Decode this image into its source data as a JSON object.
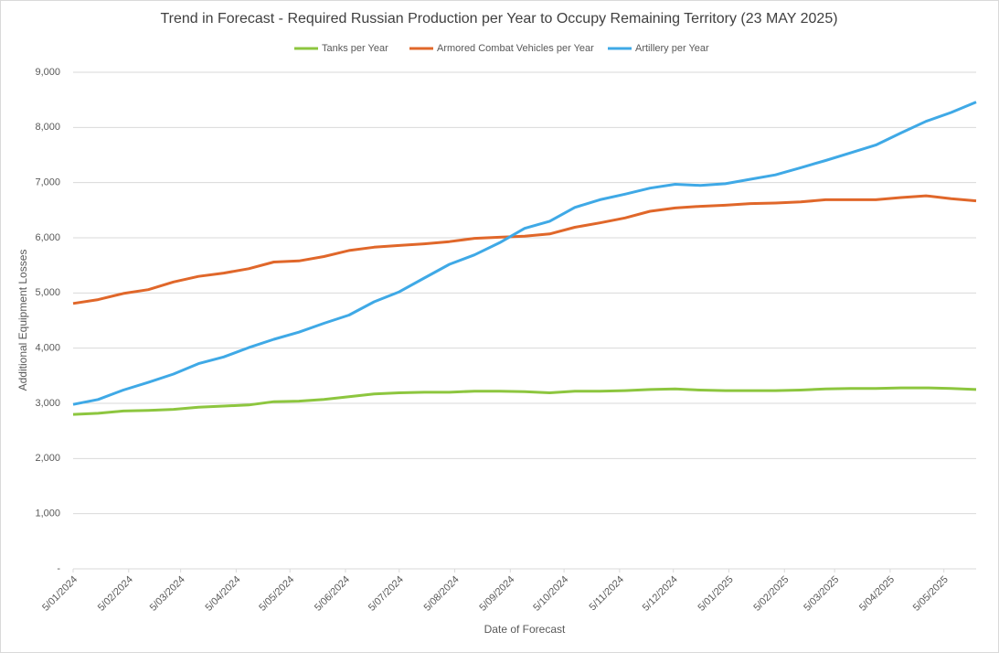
{
  "chart_data": {
    "type": "line",
    "title": "Trend in Forecast - Required Russian Production per Year to Occupy Remaining Territory (23 MAY 2025)",
    "x_label": "Date of Forecast",
    "y_label": "Additional Equipment Losses",
    "x": [
      "2024-01-05",
      "2024-01-19",
      "2024-02-02",
      "2024-02-16",
      "2024-03-01",
      "2024-03-15",
      "2024-03-29",
      "2024-04-12",
      "2024-04-26",
      "2024-05-10",
      "2024-05-24",
      "2024-06-07",
      "2024-06-21",
      "2024-07-05",
      "2024-07-19",
      "2024-08-02",
      "2024-08-16",
      "2024-08-30",
      "2024-09-13",
      "2024-09-27",
      "2024-10-11",
      "2024-10-25",
      "2024-11-08",
      "2024-11-22",
      "2024-12-06",
      "2024-12-20",
      "2025-01-03",
      "2025-01-17",
      "2025-01-31",
      "2025-02-14",
      "2025-02-28",
      "2025-03-14",
      "2025-03-28",
      "2025-04-11",
      "2025-04-25",
      "2025-05-09",
      "2025-05-23"
    ],
    "series": [
      {
        "name": "Tanks per Year",
        "color": "#8dc63f",
        "values": [
          2800,
          2820,
          2860,
          2870,
          2890,
          2930,
          2950,
          2970,
          3030,
          3040,
          3070,
          3120,
          3170,
          3190,
          3200,
          3200,
          3220,
          3220,
          3210,
          3190,
          3220,
          3220,
          3230,
          3250,
          3260,
          3240,
          3230,
          3230,
          3230,
          3240,
          3260,
          3270,
          3270,
          3280,
          3280,
          3270,
          3250
        ]
      },
      {
        "name": "Armored Combat Vehicles per Year",
        "color": "#e0672a",
        "values": [
          4810,
          4880,
          4990,
          5060,
          5200,
          5300,
          5360,
          5440,
          5560,
          5580,
          5660,
          5770,
          5830,
          5860,
          5890,
          5930,
          5990,
          6010,
          6030,
          6070,
          6190,
          6270,
          6360,
          6480,
          6540,
          6570,
          6590,
          6620,
          6630,
          6650,
          6690,
          6690,
          6690,
          6730,
          6760,
          6710,
          6670
        ]
      },
      {
        "name": "Artillery per Year",
        "color": "#3fa9e6",
        "values": [
          2980,
          3070,
          3240,
          3380,
          3530,
          3720,
          3840,
          4010,
          4160,
          4290,
          4450,
          4600,
          4840,
          5020,
          5270,
          5520,
          5690,
          5910,
          6170,
          6300,
          6550,
          6690,
          6790,
          6900,
          6970,
          6950,
          6980,
          7060,
          7140,
          7270,
          7400,
          7540,
          7680,
          7900,
          8110,
          8270,
          8460
        ]
      }
    ],
    "xlim": [
      "2024-01-05",
      "2025-05-23"
    ],
    "xticks": [
      {
        "value": "2024-01-05",
        "label": "5/01/2024"
      },
      {
        "value": "2024-02-05",
        "label": "5/02/2024"
      },
      {
        "value": "2024-03-05",
        "label": "5/03/2024"
      },
      {
        "value": "2024-04-05",
        "label": "5/04/2024"
      },
      {
        "value": "2024-05-05",
        "label": "5/05/2024"
      },
      {
        "value": "2024-06-05",
        "label": "5/06/2024"
      },
      {
        "value": "2024-07-05",
        "label": "5/07/2024"
      },
      {
        "value": "2024-08-05",
        "label": "5/08/2024"
      },
      {
        "value": "2024-09-05",
        "label": "5/09/2024"
      },
      {
        "value": "2024-10-05",
        "label": "5/10/2024"
      },
      {
        "value": "2024-11-05",
        "label": "5/11/2024"
      },
      {
        "value": "2024-12-05",
        "label": "5/12/2024"
      },
      {
        "value": "2025-01-05",
        "label": "5/01/2025"
      },
      {
        "value": "2025-02-05",
        "label": "5/02/2025"
      },
      {
        "value": "2025-03-05",
        "label": "5/03/2025"
      },
      {
        "value": "2025-04-05",
        "label": "5/04/2025"
      },
      {
        "value": "2025-05-05",
        "label": "5/05/2025"
      }
    ],
    "ylim": [
      0,
      9000
    ],
    "yticks": [
      {
        "value": 0,
        "label": "-"
      },
      {
        "value": 1000,
        "label": "1,000"
      },
      {
        "value": 2000,
        "label": "2,000"
      },
      {
        "value": 3000,
        "label": "3,000"
      },
      {
        "value": 4000,
        "label": "4,000"
      },
      {
        "value": 5000,
        "label": "5,000"
      },
      {
        "value": 6000,
        "label": "6,000"
      },
      {
        "value": 7000,
        "label": "7,000"
      },
      {
        "value": 8000,
        "label": "8,000"
      },
      {
        "value": 9000,
        "label": "9,000"
      }
    ],
    "grid": true,
    "legend": "top"
  }
}
